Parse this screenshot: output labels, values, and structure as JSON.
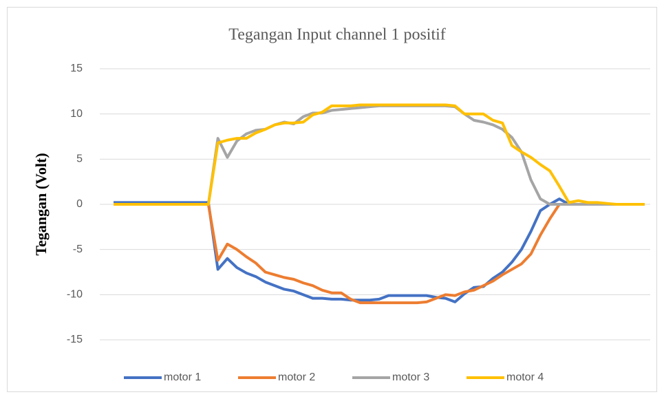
{
  "chart_data": {
    "type": "line",
    "title": "Tegangan Input channel 1 positif",
    "ylabel": "Tegangan (Volt)",
    "categories": [
      null,
      null,
      null,
      null,
      null,
      null,
      null,
      null,
      null,
      null,
      null,
      null,
      null,
      null,
      null,
      null,
      null,
      null,
      null,
      null,
      null,
      null,
      null,
      null,
      null,
      null,
      null,
      null,
      null,
      null,
      null,
      null,
      null,
      null,
      null,
      null,
      null,
      null,
      null,
      null,
      null,
      null,
      null,
      null,
      null,
      null,
      null,
      null,
      null,
      null,
      null,
      null,
      null,
      null,
      null,
      null,
      null
    ],
    "series": [
      {
        "name": "motor 1",
        "color": "#4472c4",
        "values": [
          0.2,
          0.2,
          0.2,
          0.2,
          0.2,
          0.2,
          0.2,
          0.2,
          0.2,
          0.2,
          0.2,
          -7.2,
          -6.0,
          -7.0,
          -7.6,
          -8.0,
          -8.6,
          -9.0,
          -9.4,
          -9.6,
          -10.0,
          -10.4,
          -10.4,
          -10.5,
          -10.5,
          -10.6,
          -10.6,
          -10.6,
          -10.5,
          -10.1,
          -10.1,
          -10.1,
          -10.1,
          -10.1,
          -10.3,
          -10.4,
          -10.8,
          -9.9,
          -9.2,
          -9.1,
          -8.2,
          -7.5,
          -6.4,
          -5.0,
          -3.0,
          -0.7,
          0,
          0.6,
          0,
          0,
          0,
          0,
          0,
          0,
          0,
          0,
          0
        ]
      },
      {
        "name": "motor 2",
        "color": "#ed7d31",
        "values": [
          0,
          0,
          0,
          0,
          0,
          0,
          0,
          0,
          0,
          0,
          0,
          -6.2,
          -4.4,
          -5.0,
          -5.8,
          -6.5,
          -7.5,
          -7.8,
          -8.1,
          -8.3,
          -8.7,
          -9.0,
          -9.5,
          -9.8,
          -9.8,
          -10.5,
          -10.9,
          -10.9,
          -10.9,
          -10.9,
          -10.9,
          -10.9,
          -10.9,
          -10.8,
          -10.4,
          -10.0,
          -10.1,
          -9.7,
          -9.5,
          -9.0,
          -8.5,
          -7.8,
          -7.2,
          -6.6,
          -5.5,
          -3.4,
          -1.6,
          0,
          0,
          0,
          0,
          0,
          0,
          0,
          0,
          0,
          0
        ]
      },
      {
        "name": "motor 3",
        "color": "#a5a5a5",
        "values": [
          0,
          0,
          0,
          0,
          0,
          0,
          0,
          0,
          0,
          0,
          0,
          7.3,
          5.2,
          7.0,
          7.8,
          8.2,
          8.3,
          8.8,
          9.1,
          8.9,
          9.7,
          10.1,
          10.1,
          10.4,
          10.5,
          10.6,
          10.7,
          10.8,
          10.9,
          10.9,
          10.9,
          10.9,
          10.9,
          10.9,
          10.9,
          10.9,
          10.8,
          10.0,
          9.3,
          9.1,
          8.8,
          8.3,
          7.4,
          5.8,
          2.7,
          0.6,
          0,
          0,
          0,
          0,
          0,
          0,
          0,
          0,
          0,
          0,
          0
        ]
      },
      {
        "name": "motor 4",
        "color": "#ffc000",
        "values": [
          0,
          0,
          0,
          0,
          0,
          0,
          0,
          0,
          0,
          0,
          0,
          6.8,
          7.1,
          7.3,
          7.3,
          7.9,
          8.3,
          8.8,
          9.0,
          9.0,
          9.1,
          9.9,
          10.2,
          10.9,
          10.9,
          10.9,
          11.0,
          11.0,
          11.0,
          11.0,
          11.0,
          11.0,
          11.0,
          11.0,
          11.0,
          11.0,
          10.9,
          10.0,
          10.0,
          10.0,
          9.3,
          9.0,
          6.5,
          5.8,
          5.2,
          4.4,
          3.7,
          2.0,
          0.2,
          0.4,
          0.2,
          0.2,
          0.1,
          0,
          0,
          0,
          0
        ]
      }
    ],
    "ylim": [
      -15,
      15
    ],
    "yticks": [
      -15,
      -10,
      -5,
      0,
      5,
      10,
      15
    ],
    "grid": true,
    "legend": "bottom"
  }
}
